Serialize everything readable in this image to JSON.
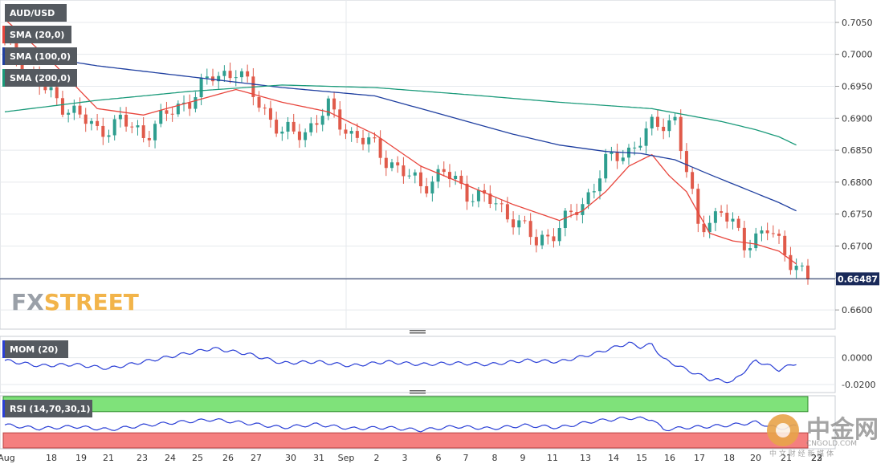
{
  "chart_data": {
    "type": "candlestick",
    "symbol": "AUD/USD",
    "price_axis": {
      "ylim": [
        0.657,
        0.7085
      ],
      "ticks": [
        "0.7050",
        "0.7000",
        "0.6950",
        "0.6900",
        "0.6850",
        "0.6800",
        "0.6750",
        "0.6700",
        "0.6650",
        "0.6600"
      ]
    },
    "current_price": "0.66487",
    "x_labels": [
      "Aug",
      "18",
      "19",
      "21",
      "23",
      "24",
      "25",
      "26",
      "27",
      "30",
      "31",
      "Sep",
      "2",
      "3",
      "6",
      "7",
      "8",
      "9",
      "11",
      "13",
      "14",
      "15",
      "16",
      "17",
      "18",
      "20",
      "21",
      "22",
      "23"
    ],
    "indicators": [
      {
        "name": "SMA (20,0)",
        "color": "#e8453c"
      },
      {
        "name": "SMA (100,0)",
        "color": "#1f3fa0"
      },
      {
        "name": "SMA (200,0)",
        "color": "#1a9a7a"
      }
    ],
    "candles_count": 140,
    "price_series": {
      "x": [
        0,
        4,
        8,
        12,
        16,
        20,
        24,
        28,
        32,
        36,
        40,
        44,
        48,
        52,
        56,
        60,
        64,
        68,
        72,
        76,
        80,
        84,
        88,
        92,
        96,
        100,
        104,
        108,
        112,
        116,
        120,
        124,
        128,
        132,
        136,
        139
      ],
      "close": [
        0.702,
        0.697,
        0.6935,
        0.691,
        0.688,
        0.6895,
        0.6875,
        0.6905,
        0.693,
        0.6965,
        0.6975,
        0.6925,
        0.6875,
        0.688,
        0.6915,
        0.6875,
        0.6855,
        0.682,
        0.6795,
        0.6815,
        0.6785,
        0.677,
        0.6745,
        0.6705,
        0.673,
        0.6765,
        0.683,
        0.685,
        0.6885,
        0.69,
        0.673,
        0.6755,
        0.6705,
        0.6725,
        0.668,
        0.6649
      ]
    },
    "sma20": {
      "x": [
        0,
        8,
        16,
        24,
        32,
        40,
        48,
        56,
        64,
        72,
        80,
        88,
        96,
        100,
        104,
        108,
        112,
        115,
        118,
        122,
        126,
        130,
        134,
        137
      ],
      "y": [
        0.7055,
        0.699,
        0.6915,
        0.6905,
        0.6925,
        0.6945,
        0.6925,
        0.691,
        0.6875,
        0.6825,
        0.6795,
        0.6765,
        0.674,
        0.6755,
        0.6785,
        0.6825,
        0.6843,
        0.681,
        0.6785,
        0.672,
        0.6708,
        0.6703,
        0.6692,
        0.6672
      ]
    },
    "sma100": {
      "x": [
        0,
        16,
        32,
        48,
        64,
        72,
        80,
        88,
        96,
        104,
        110,
        116,
        122,
        128,
        134,
        137
      ],
      "y": [
        0.7005,
        0.6982,
        0.6965,
        0.6948,
        0.6935,
        0.6915,
        0.6895,
        0.6875,
        0.6858,
        0.6848,
        0.6845,
        0.6835,
        0.6812,
        0.679,
        0.6768,
        0.6755
      ]
    },
    "sma200": {
      "x": [
        0,
        16,
        32,
        48,
        64,
        80,
        96,
        112,
        124,
        130,
        134,
        137
      ],
      "y": [
        0.691,
        0.6928,
        0.6942,
        0.6952,
        0.6948,
        0.6937,
        0.6925,
        0.6915,
        0.6895,
        0.6882,
        0.6871,
        0.6858
      ]
    },
    "momentum": {
      "label": "MOM (20)",
      "ticks": [
        "0.0000",
        "-0.0200"
      ],
      "ylim": [
        -0.026,
        0.016
      ],
      "x": [
        0,
        6,
        12,
        18,
        24,
        30,
        36,
        42,
        48,
        54,
        60,
        66,
        72,
        78,
        84,
        90,
        96,
        102,
        108,
        110,
        112,
        114,
        118,
        122,
        126,
        130,
        134,
        137
      ],
      "values": [
        -0.002,
        -0.006,
        -0.005,
        -0.008,
        -0.003,
        0.002,
        0.007,
        0.003,
        -0.004,
        -0.003,
        -0.006,
        -0.003,
        -0.005,
        -0.004,
        -0.005,
        -0.002,
        -0.003,
        0.003,
        0.011,
        0.008,
        0.01,
        -0.001,
        -0.009,
        -0.016,
        -0.018,
        -0.002,
        -0.009,
        -0.004
      ]
    },
    "rsi": {
      "label": "RSI (14,70,30,1)",
      "ylim": [
        0,
        100
      ],
      "overbought": 70,
      "oversold": 30,
      "x": [
        0,
        6,
        12,
        18,
        24,
        30,
        36,
        42,
        48,
        54,
        60,
        66,
        72,
        78,
        84,
        90,
        96,
        102,
        108,
        112,
        114,
        118,
        122,
        126,
        130,
        134,
        137
      ],
      "values": [
        45,
        38,
        42,
        36,
        44,
        50,
        55,
        48,
        40,
        46,
        38,
        40,
        35,
        42,
        38,
        44,
        40,
        52,
        58,
        56,
        36,
        40,
        42,
        45,
        50,
        38,
        43
      ]
    },
    "grid": true
  },
  "branding": {
    "logo_fx": "FX",
    "logo_street": "STREET",
    "watermark_cn": "中金网",
    "watermark_url": "CNGOLD.COM",
    "watermark_sub": "中 文 财 经 新 媒 体"
  }
}
